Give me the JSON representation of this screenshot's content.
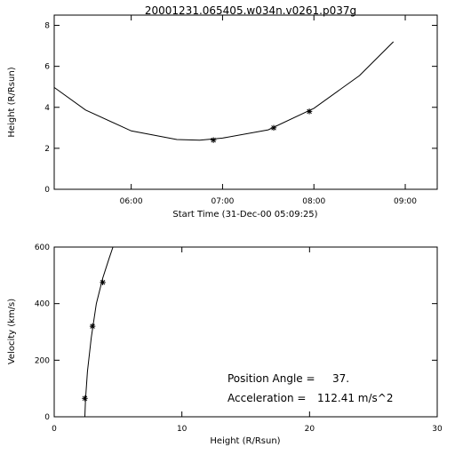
{
  "figure_title": "20001231.065405.w034n.v0261.p037g",
  "chart_data": [
    {
      "type": "line",
      "xlabel": "Start Time (31-Dec-00 05:09:25)",
      "ylabel": "Height (R/Rsun)",
      "x_unit": "hours",
      "xlim": [
        5.157,
        9.35
      ],
      "ylim": [
        0,
        8.5
      ],
      "xticks": [
        {
          "value": 6.0,
          "label": "06:00"
        },
        {
          "value": 7.0,
          "label": "07:00"
        },
        {
          "value": 8.0,
          "label": "08:00"
        },
        {
          "value": 9.0,
          "label": "09:00"
        }
      ],
      "yticks": [
        {
          "value": 0,
          "label": "0"
        },
        {
          "value": 2,
          "label": "2"
        },
        {
          "value": 4,
          "label": "4"
        },
        {
          "value": 6,
          "label": "6"
        },
        {
          "value": 8,
          "label": "8"
        }
      ],
      "series": [
        {
          "role": "fit",
          "x": [
            5.157,
            5.5,
            6.0,
            6.5,
            6.75,
            7.0,
            7.5,
            8.0,
            8.5,
            8.87
          ],
          "y": [
            4.97,
            3.87,
            2.85,
            2.43,
            2.4,
            2.5,
            2.9,
            3.95,
            5.55,
            7.2
          ]
        },
        {
          "role": "measurements",
          "marker": "*",
          "x": [
            6.9,
            7.56,
            7.95
          ],
          "y": [
            2.4,
            3.0,
            3.8
          ]
        }
      ],
      "grid": false
    },
    {
      "type": "line",
      "xlabel": "Height (R/Rsun)",
      "ylabel": "Velocity (km/s)",
      "xlim": [
        0,
        30
      ],
      "ylim": [
        0,
        600
      ],
      "xticks": [
        {
          "value": 0,
          "label": "0"
        },
        {
          "value": 10,
          "label": "10"
        },
        {
          "value": 20,
          "label": "20"
        },
        {
          "value": 30,
          "label": "30"
        }
      ],
      "yticks": [
        {
          "value": 0,
          "label": "0"
        },
        {
          "value": 200,
          "label": "200"
        },
        {
          "value": 400,
          "label": "400"
        },
        {
          "value": 600,
          "label": "600"
        }
      ],
      "series": [
        {
          "role": "fit",
          "x": [
            2.4,
            2.45,
            2.6,
            2.9,
            3.3,
            3.8,
            4.3,
            4.6
          ],
          "y": [
            0,
            60,
            160,
            280,
            400,
            490,
            560,
            600
          ]
        },
        {
          "role": "measurements",
          "marker": "*",
          "x": [
            2.4,
            3.0,
            3.8
          ],
          "y": [
            65,
            320,
            475
          ]
        }
      ],
      "annotations": [
        {
          "label": "Position Angle =",
          "value": "37."
        },
        {
          "label": "Acceleration =",
          "value": "112.41 m/s^2"
        }
      ],
      "grid": false
    }
  ]
}
